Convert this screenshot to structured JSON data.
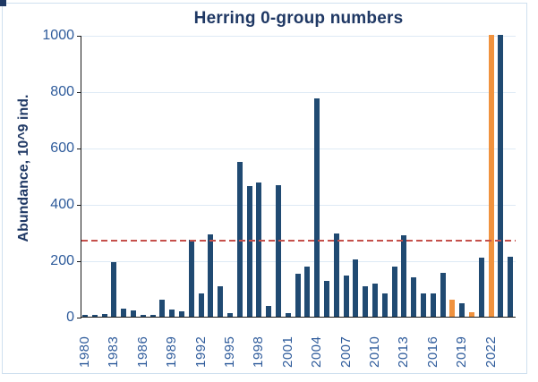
{
  "chart_data": {
    "type": "bar",
    "title": "Herring 0-group numbers",
    "ylabel": "Abundance, 10^9 ind.",
    "xlabel": "",
    "ylim": [
      0,
      1000
    ],
    "yticks": [
      0,
      200,
      400,
      600,
      800,
      1000
    ],
    "xtick_years": [
      1980,
      1983,
      1986,
      1989,
      1992,
      1995,
      1998,
      2001,
      2004,
      2007,
      2010,
      2013,
      2016,
      2019,
      2022
    ],
    "grid": "horizontal",
    "legend_position": "none",
    "years": [
      1980,
      1981,
      1982,
      1983,
      1984,
      1985,
      1986,
      1987,
      1988,
      1989,
      1990,
      1991,
      1992,
      1993,
      1994,
      1995,
      1996,
      1997,
      1998,
      1999,
      2000,
      2001,
      2002,
      2003,
      2004,
      2005,
      2006,
      2007,
      2008,
      2009,
      2010,
      2011,
      2012,
      2013,
      2014,
      2015,
      2016,
      2017,
      2018,
      2019,
      2020,
      2021,
      2022,
      2023,
      2024
    ],
    "values": [
      7,
      5,
      9,
      193,
      28,
      21,
      7,
      5,
      61,
      25,
      18,
      272,
      83,
      293,
      107,
      13,
      548,
      462,
      475,
      38,
      468,
      13,
      153,
      179,
      775,
      128,
      295,
      145,
      203,
      107,
      118,
      83,
      179,
      290,
      141,
      83,
      82,
      154,
      59,
      48,
      16,
      211,
      1000,
      1000,
      213
    ],
    "highlight_years": [
      2018,
      2020,
      2022
    ],
    "clipped_at_top_years": [
      2022,
      2023
    ],
    "mean_line_value": 273,
    "colors": {
      "bar": "#204a72",
      "highlight_bar": "#f0923e",
      "mean_line": "#c5504b",
      "title": "#1f3864",
      "axis_labels": "#2e5b9b",
      "gridline": "#deeaf5",
      "axis_line": "#1a1a1a",
      "chart_frame": "#cfe0ef"
    }
  }
}
